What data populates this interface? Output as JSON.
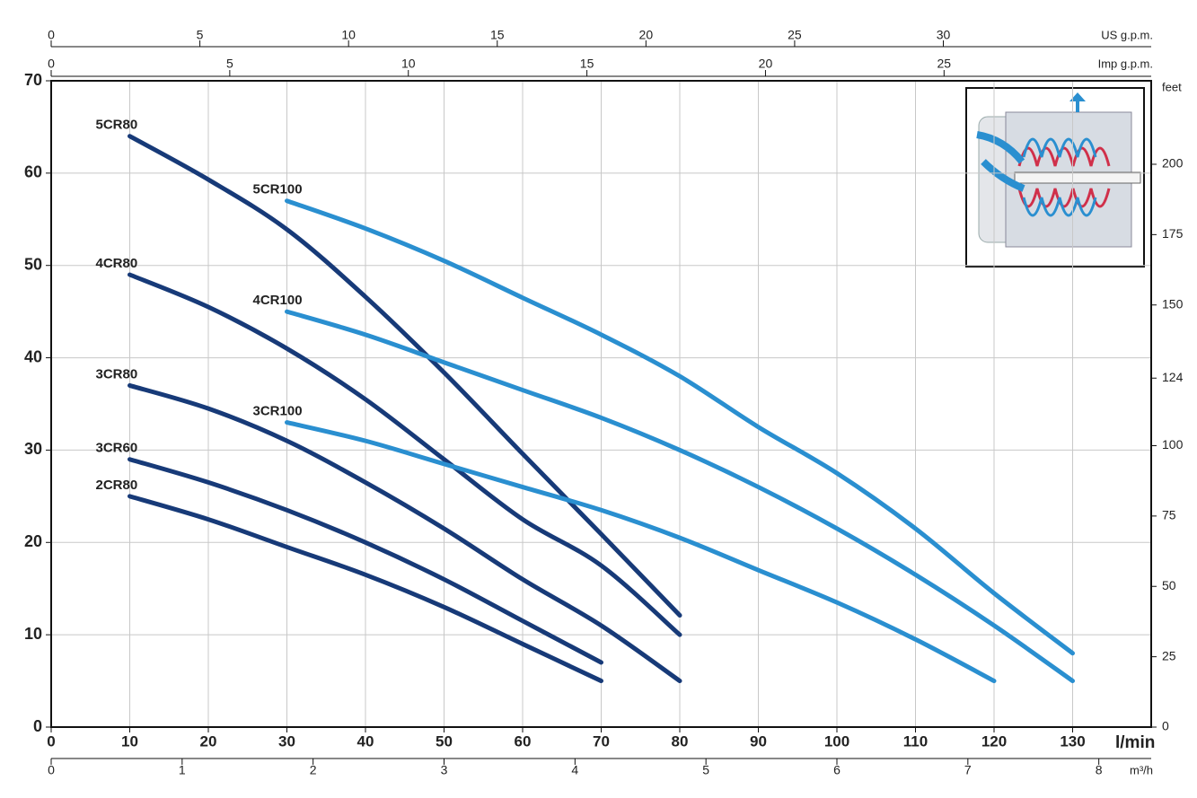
{
  "chart_data": {
    "type": "line",
    "x_label": "l/min",
    "xlim": [
      0,
      140
    ],
    "xticks": [
      0,
      10,
      20,
      30,
      40,
      50,
      60,
      70,
      80,
      90,
      100,
      110,
      120,
      130
    ],
    "ylim": [
      0,
      70
    ],
    "yticks": [
      0,
      10,
      20,
      30,
      40,
      50,
      60,
      70
    ],
    "y2_label": "feet",
    "y2lim": [
      0,
      229.66
    ],
    "y2ticks": [
      0,
      25,
      50,
      75,
      100,
      124,
      150,
      175,
      200
    ],
    "x2_label": "m³/h",
    "x2lim": [
      0,
      8.4
    ],
    "x2ticks": [
      0,
      1,
      2,
      3,
      4,
      5,
      6,
      7,
      8
    ],
    "x3_label": "US g.p.m.",
    "x3lim": [
      0,
      36.99
    ],
    "x3ticks": [
      0,
      5,
      10,
      15,
      20,
      25,
      30
    ],
    "x4_label": "Imp g.p.m.",
    "x4lim": [
      0,
      30.8
    ],
    "x4ticks": [
      0,
      5,
      10,
      15,
      20,
      25
    ],
    "grid": true,
    "series": [
      {
        "name": "5CR80",
        "color": "#173a78",
        "x": [
          10,
          20,
          30,
          40,
          50,
          60,
          70,
          80
        ],
        "values": [
          64,
          59.3,
          53.9,
          46.6,
          38.4,
          29.6,
          20.9,
          12.1
        ]
      },
      {
        "name": "4CR80",
        "color": "#173a78",
        "x": [
          10,
          20,
          30,
          40,
          50,
          60,
          70,
          80
        ],
        "values": [
          49,
          45.5,
          41,
          35.5,
          29,
          22.5,
          17.5,
          10
        ]
      },
      {
        "name": "3CR80",
        "color": "#173a78",
        "x": [
          10,
          20,
          30,
          40,
          50,
          60,
          70,
          80
        ],
        "values": [
          37,
          34.5,
          31,
          26.5,
          21.5,
          16,
          11,
          5
        ]
      },
      {
        "name": "3CR60",
        "color": "#173a78",
        "x": [
          10,
          20,
          30,
          40,
          50,
          60,
          70
        ],
        "values": [
          29,
          26.5,
          23.5,
          20,
          16,
          11.5,
          7
        ]
      },
      {
        "name": "2CR80",
        "color": "#173a78",
        "x": [
          10,
          20,
          30,
          40,
          50,
          60,
          70
        ],
        "values": [
          25,
          22.5,
          19.5,
          16.5,
          13,
          9,
          5
        ]
      },
      {
        "name": "5CR100",
        "color": "#2a8fd0",
        "x": [
          30,
          40,
          50,
          60,
          70,
          80,
          90,
          100,
          110,
          120,
          130
        ],
        "values": [
          57,
          54,
          50.5,
          46.5,
          42.5,
          38,
          32.5,
          27.5,
          21.5,
          14.5,
          8
        ]
      },
      {
        "name": "4CR100",
        "color": "#2a8fd0",
        "x": [
          30,
          40,
          50,
          60,
          70,
          80,
          90,
          100,
          110,
          120,
          130
        ],
        "values": [
          45,
          42.5,
          39.5,
          36.5,
          33.5,
          30,
          26,
          21.5,
          16.5,
          11,
          5
        ]
      },
      {
        "name": "3CR100",
        "color": "#2a8fd0",
        "x": [
          30,
          40,
          50,
          60,
          70,
          80,
          90,
          100,
          110,
          120
        ],
        "values": [
          33,
          31,
          28.5,
          26,
          23.5,
          20.5,
          17,
          13.5,
          9.5,
          5
        ]
      }
    ]
  }
}
